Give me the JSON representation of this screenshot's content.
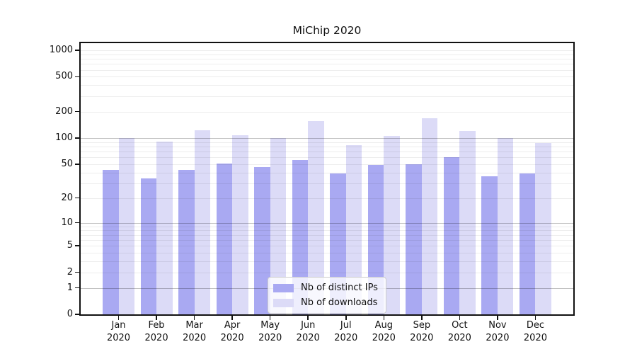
{
  "chart_data": {
    "type": "bar",
    "title": "MiChip 2020",
    "categories": [
      "Jan",
      "Feb",
      "Mar",
      "Apr",
      "May",
      "Jun",
      "Jul",
      "Aug",
      "Sep",
      "Oct",
      "Nov",
      "Dec"
    ],
    "category_sublabel": "2020",
    "series": [
      {
        "name": "Nb of distinct IPs",
        "color": "#a9a9f2",
        "values": [
          43,
          34,
          43,
          51,
          46,
          56,
          39,
          49,
          50,
          60,
          36,
          39
        ]
      },
      {
        "name": "Nb of downloads",
        "color": "#dcdbf7",
        "values": [
          100,
          90,
          122,
          107,
          100,
          155,
          83,
          105,
          168,
          121,
          100,
          87
        ]
      }
    ],
    "y_scale": "symlog",
    "ylim": [
      0,
      1000
    ],
    "y_ticks": [
      0,
      1,
      2,
      5,
      10,
      20,
      50,
      100,
      200,
      500,
      1000
    ],
    "y_major_gridlines": [
      1,
      10,
      100
    ],
    "grid": "horizontal",
    "legend_position": "inside-bottom-center",
    "background_color": "#ffffff",
    "frame_color": "#111111",
    "text_color": "#111111"
  }
}
